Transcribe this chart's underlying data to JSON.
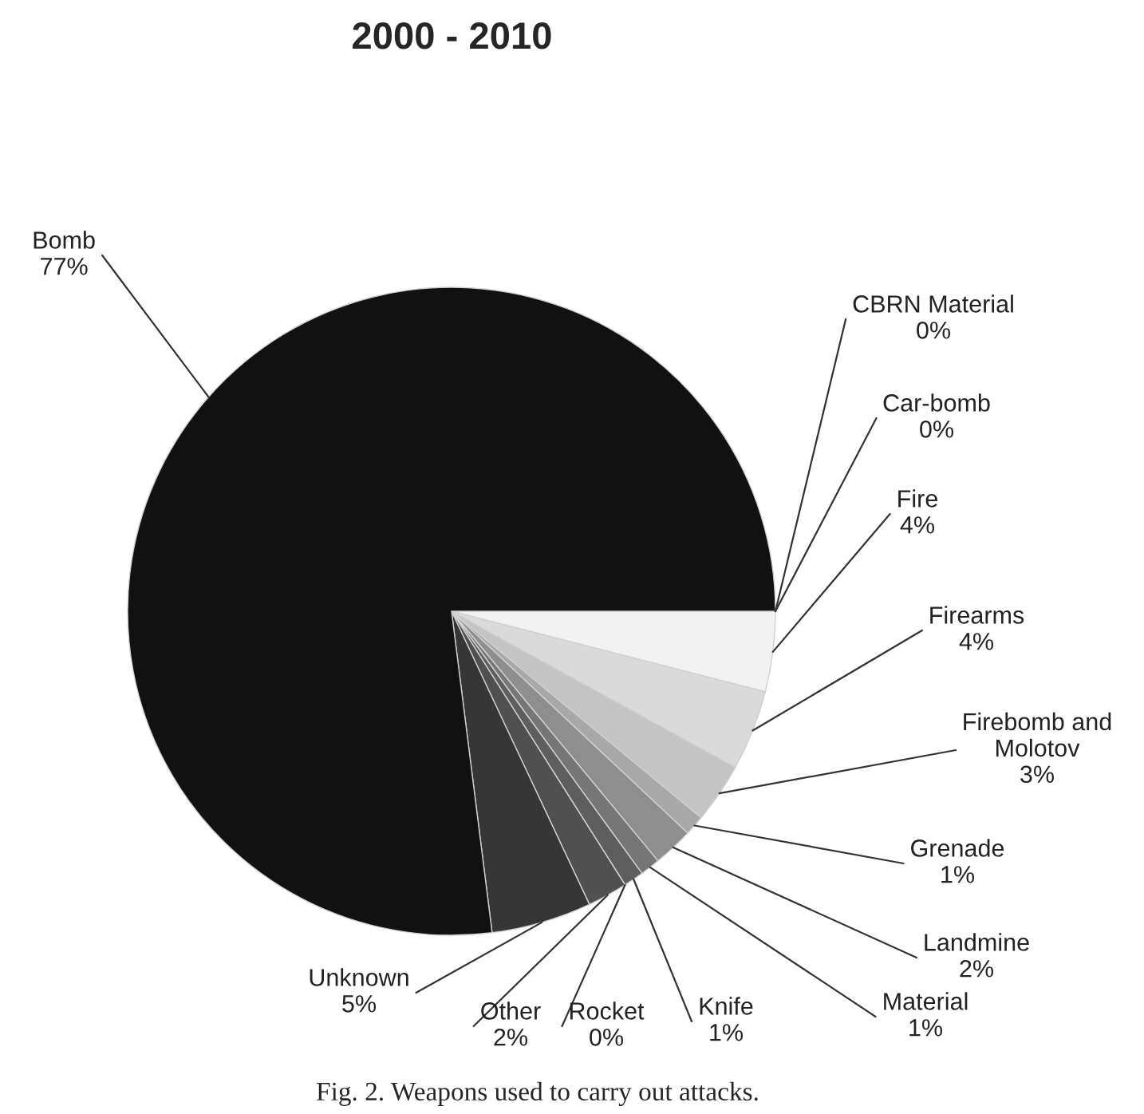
{
  "chart_data": {
    "type": "pie",
    "title": "2000 - 2010",
    "categories": [
      "CBRN Material",
      "Car-bomb",
      "Fire",
      "Firearms",
      "Firebomb and Molotov",
      "Grenade",
      "Landmine",
      "Material",
      "Knife",
      "Rocket",
      "Other",
      "Unknown",
      "Bomb"
    ],
    "values": [
      0,
      0,
      4,
      4,
      3,
      1,
      2,
      1,
      1,
      0,
      2,
      5,
      77
    ],
    "colors": [
      "#e0e0e0",
      "#cfcfcf",
      "#f2f2f2",
      "#dadada",
      "#c4c4c4",
      "#a8a8a8",
      "#8e8e8e",
      "#767676",
      "#5e5e5e",
      "#474747",
      "#505050",
      "#363636",
      "#111111"
    ],
    "value_labels": [
      "0%",
      "0%",
      "4%",
      "4%",
      "3%",
      "1%",
      "2%",
      "1%",
      "1%",
      "0%",
      "2%",
      "5%",
      "77%"
    ],
    "annotations": [
      "Fig. 2. Weapons used to carry out attacks."
    ]
  }
}
